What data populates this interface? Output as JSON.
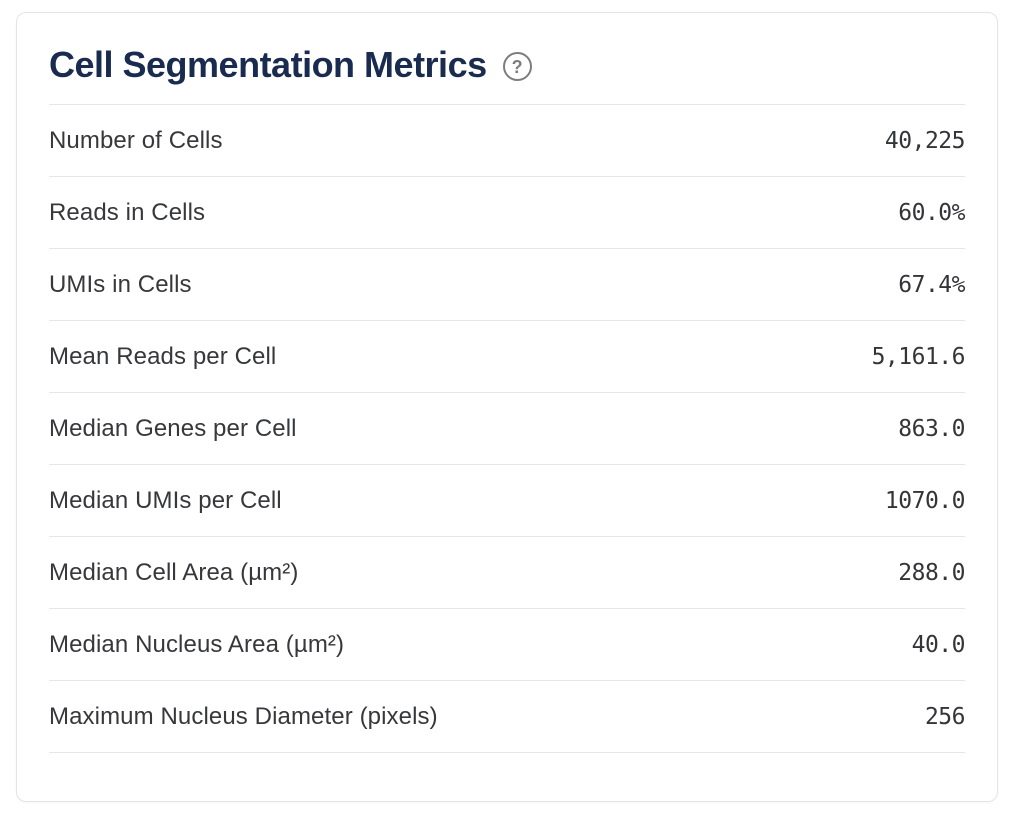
{
  "card": {
    "title": "Cell Segmentation Metrics",
    "help_icon": {
      "name": "question-mark-circle-icon",
      "glyph": "?"
    },
    "colors": {
      "title": "#1a2b50",
      "label_text": "#36383b",
      "value_text": "#333538",
      "divider": "#e4e7ea",
      "card_border": "#e4e4e6",
      "help_icon": "#7d7d7d",
      "background": "#ffffff"
    },
    "metrics": [
      {
        "label": "Number of Cells",
        "value": "40,225"
      },
      {
        "label": "Reads in Cells",
        "value": "60.0%"
      },
      {
        "label": "UMIs in Cells",
        "value": "67.4%"
      },
      {
        "label": "Mean Reads per Cell",
        "value": "5,161.6"
      },
      {
        "label": "Median Genes per Cell",
        "value": "863.0"
      },
      {
        "label": "Median UMIs per Cell",
        "value": "1070.0"
      },
      {
        "label": "Median Cell Area (µm²)",
        "value": "288.0"
      },
      {
        "label": "Median Nucleus Area (µm²)",
        "value": "40.0"
      },
      {
        "label": "Maximum Nucleus Diameter (pixels)",
        "value": "256"
      }
    ]
  }
}
